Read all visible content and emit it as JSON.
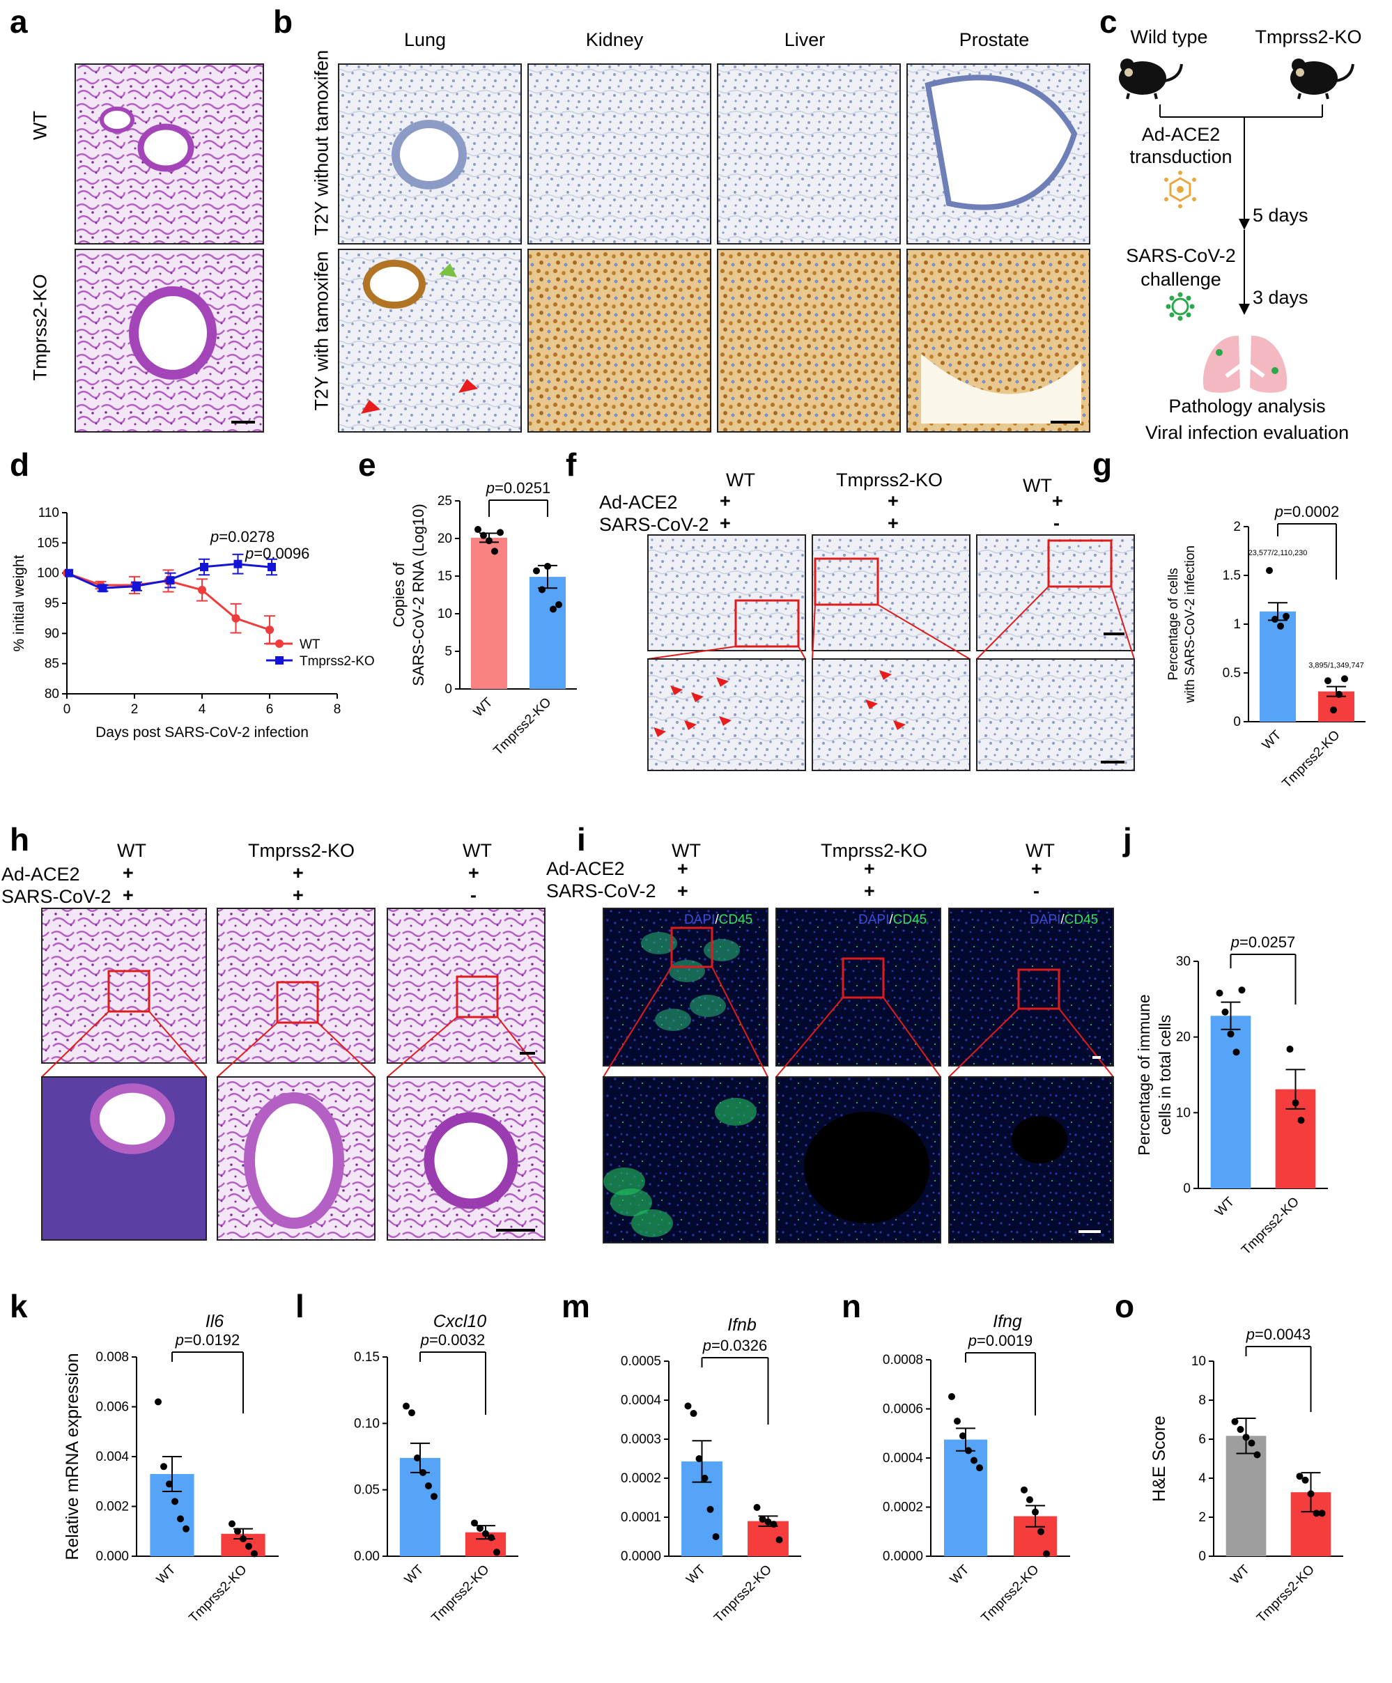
{
  "panel_letters": {
    "a": "a",
    "b": "b",
    "c": "c",
    "d": "d",
    "e": "e",
    "f": "f",
    "g": "g",
    "h": "h",
    "i": "i",
    "j": "j",
    "k": "k",
    "l": "l",
    "m": "m",
    "n": "n",
    "o": "o"
  },
  "colors": {
    "wt_red": "#ef3b3b",
    "ko_blue": "#1414d8",
    "bar_pink": "#f98383",
    "bar_blue": "#55a4f7",
    "bar_red": "#f63d3d",
    "bar_gray": "#9e9e9e",
    "he_purple": "#b45fc4",
    "ihc_bg": "#e9ecf2",
    "fluor_bg": "#02062a",
    "mouse": "#111111",
    "lung_pink": "#f4b9c0"
  },
  "panel_a": {
    "row_labels": [
      "WT",
      "Tmprss2-KO"
    ]
  },
  "panel_b": {
    "columns": [
      "Lung",
      "Kidney",
      "Liver",
      "Prostate"
    ],
    "row_labels": [
      "T2Y without tamoxifen",
      "T2Y with tamoxifen"
    ]
  },
  "panel_c": {
    "wild_type": "Wild type",
    "ko": "Tmprss2-KO",
    "step1a": "Ad-ACE2",
    "step1b": "transduction",
    "days1": "5 days",
    "step2a": "SARS-CoV-2",
    "step2b": "challenge",
    "days2": "3 days",
    "out1": "Pathology analysis",
    "out2": "Viral infection evaluation",
    "icons": [
      "mouse-icon",
      "adenovirus-icon",
      "coronavirus-icon",
      "lungs-icon"
    ]
  },
  "cond_labels": {
    "ad": "Ad-ACE2",
    "sars": "SARS-CoV-2",
    "wt": "WT",
    "ko": "Tmprss2-KO",
    "plus": "+",
    "minus": "-"
  },
  "panel_i_stain": {
    "dapi": "DAPI",
    "slash": "/",
    "cd45": "CD45"
  },
  "chart_data": [
    {
      "id": "d",
      "type": "line",
      "xlabel": "Days post SARS-CoV-2 infection",
      "ylabel": "% initial weight",
      "xlim": [
        0,
        8
      ],
      "ylim": [
        80,
        110
      ],
      "xticks": [
        0,
        2,
        4,
        6,
        8
      ],
      "yticks": [
        80,
        85,
        90,
        95,
        100,
        105,
        110
      ],
      "series": [
        {
          "name": "WT",
          "x": [
            0,
            1,
            2,
            3,
            4,
            5,
            6
          ],
          "y": [
            100,
            98,
            98,
            98.7,
            97.2,
            92.5,
            90.6
          ],
          "err": [
            0,
            0.6,
            1.4,
            1.8,
            1.8,
            2.4,
            2.3
          ]
        },
        {
          "name": "Tmprss2-KO",
          "x": [
            0,
            1,
            2,
            3,
            4,
            5,
            6
          ],
          "y": [
            100,
            97.5,
            97.8,
            98.8,
            101.0,
            101.5,
            101.0
          ],
          "err": [
            0,
            0.5,
            0.7,
            1.2,
            1.3,
            1.6,
            1.3
          ]
        }
      ],
      "annotations": [
        {
          "p": "p",
          "val": "=0.0278"
        },
        {
          "p": "p",
          "val": "=0.0096"
        }
      ]
    },
    {
      "id": "e",
      "type": "bar",
      "categories": [
        "WT",
        "Tmprss2-KO"
      ],
      "values": [
        20.1,
        14.9
      ],
      "err": [
        0.6,
        1.5
      ],
      "points": [
        [
          21.2,
          20.4,
          19.7,
          18.3,
          20.8
        ],
        [
          15.7,
          13.2,
          16.3,
          10.6,
          11.2
        ]
      ],
      "ylabel_lines": [
        "Copies of",
        "SARS-CoV-2 RNA (Log10)"
      ],
      "ylim": [
        0,
        25
      ],
      "yticks": [
        0,
        5,
        10,
        15,
        20,
        25
      ],
      "p": "p",
      "pval": "=0.0251"
    },
    {
      "id": "g",
      "type": "bar",
      "categories": [
        "WT",
        "Tmprss2-KO"
      ],
      "values": [
        1.13,
        0.31
      ],
      "err": [
        0.09,
        0.05
      ],
      "points": [
        [
          1.55,
          1.05,
          0.98,
          1.08
        ],
        [
          0.42,
          0.12,
          0.28,
          0.44
        ]
      ],
      "ylabel_lines": [
        "Percentage of cells",
        "with SARS-CoV-2 infection"
      ],
      "ylim": [
        0,
        2.0
      ],
      "yticks": [
        0.0,
        0.5,
        1.0,
        1.5,
        2.0
      ],
      "p": "p",
      "pval": "=0.0002",
      "count_labels": [
        "23,577/2,110,230",
        "3,895/1,349,747"
      ]
    },
    {
      "id": "j",
      "type": "bar",
      "categories": [
        "WT",
        "Tmprss2-KO"
      ],
      "values": [
        22.8,
        13.1
      ],
      "err": [
        1.8,
        2.6
      ],
      "points": [
        [
          25.8,
          23.3,
          20.4,
          18.0,
          26.2
        ],
        [
          18.4,
          11.3,
          9.0
        ]
      ],
      "ylabel_lines": [
        "Percentage of immune",
        "cells in total cells"
      ],
      "ylim": [
        0,
        30
      ],
      "yticks": [
        0,
        10,
        20,
        30
      ],
      "p": "p",
      "pval": "=0.0257"
    },
    {
      "id": "k",
      "type": "bar",
      "title": "Il6",
      "categories": [
        "WT",
        "Tmprss2-KO"
      ],
      "values": [
        0.0033,
        0.0009
      ],
      "err": [
        0.0007,
        0.0002
      ],
      "points": [
        [
          0.0062,
          0.0036,
          0.0029,
          0.0022,
          0.0015,
          0.0011
        ],
        [
          0.0013,
          0.001,
          0.0007,
          0.0004,
          0.0001
        ]
      ],
      "ylabel": "Relative mRNA expression",
      "ylim": [
        0,
        0.008
      ],
      "yticks": [
        "0.000",
        "0.002",
        "0.004",
        "0.006",
        "0.008"
      ],
      "p": "p",
      "pval": "=0.0192"
    },
    {
      "id": "l",
      "type": "bar",
      "title": "Cxcl10",
      "categories": [
        "WT",
        "Tmprss2-KO"
      ],
      "values": [
        0.074,
        0.018
      ],
      "err": [
        0.011,
        0.005
      ],
      "points": [
        [
          0.113,
          0.108,
          0.074,
          0.063,
          0.053,
          0.045
        ],
        [
          0.025,
          0.021,
          0.017,
          0.014,
          0.003
        ]
      ],
      "ylim": [
        0,
        0.15
      ],
      "yticks": [
        "0.00",
        "0.05",
        "0.10",
        "0.15"
      ],
      "p": "p",
      "pval": "=0.0032"
    },
    {
      "id": "m",
      "type": "bar",
      "title": "Ifnb",
      "categories": [
        "WT",
        "Tmprss2-KO"
      ],
      "values": [
        0.000243,
        9e-05
      ],
      "err": [
        5.3e-05,
        1.3e-05
      ],
      "points": [
        [
          0.000385,
          0.000366,
          0.00025,
          0.0002,
          0.00012,
          5e-05
        ],
        [
          0.000125,
          9.5e-05,
          8.8e-05,
          8.2e-05,
          4.2e-05
        ]
      ],
      "ylim": [
        0,
        0.0005
      ],
      "yticks": [
        "0.0000",
        "0.0001",
        "0.0002",
        "0.0003",
        "0.0004",
        "0.0005"
      ],
      "p": "p",
      "pval": "=0.0326"
    },
    {
      "id": "n",
      "type": "bar",
      "title": "Ifng",
      "categories": [
        "WT",
        "Tmprss2-KO"
      ],
      "values": [
        0.000475,
        0.000163
      ],
      "err": [
        4.6e-05,
        4.3e-05
      ],
      "points": [
        [
          0.00065,
          0.00055,
          0.00049,
          0.00043,
          0.00039,
          0.00036
        ],
        [
          0.00027,
          0.00023,
          0.00018,
          0.0001,
          1e-05
        ]
      ],
      "ylim": [
        0,
        0.0008
      ],
      "yticks": [
        "0.0000",
        "0.0002",
        "0.0004",
        "0.0006",
        "0.0008"
      ],
      "p": "p",
      "pval": "=0.0019"
    },
    {
      "id": "o",
      "type": "bar",
      "categories": [
        "WT",
        "Tmprss2-KO"
      ],
      "values": [
        6.17,
        3.28
      ],
      "err": [
        0.9,
        1.0
      ],
      "points": [
        [
          6.9,
          6.5,
          6.1,
          5.8,
          5.2
        ],
        [
          4.1,
          3.9,
          3.2,
          2.2,
          2.2
        ]
      ],
      "ylabel": "H&E Score",
      "ylim": [
        0,
        10
      ],
      "yticks": [
        0,
        2,
        4,
        6,
        8,
        10
      ],
      "p": "p",
      "pval": "=0.0043"
    }
  ]
}
